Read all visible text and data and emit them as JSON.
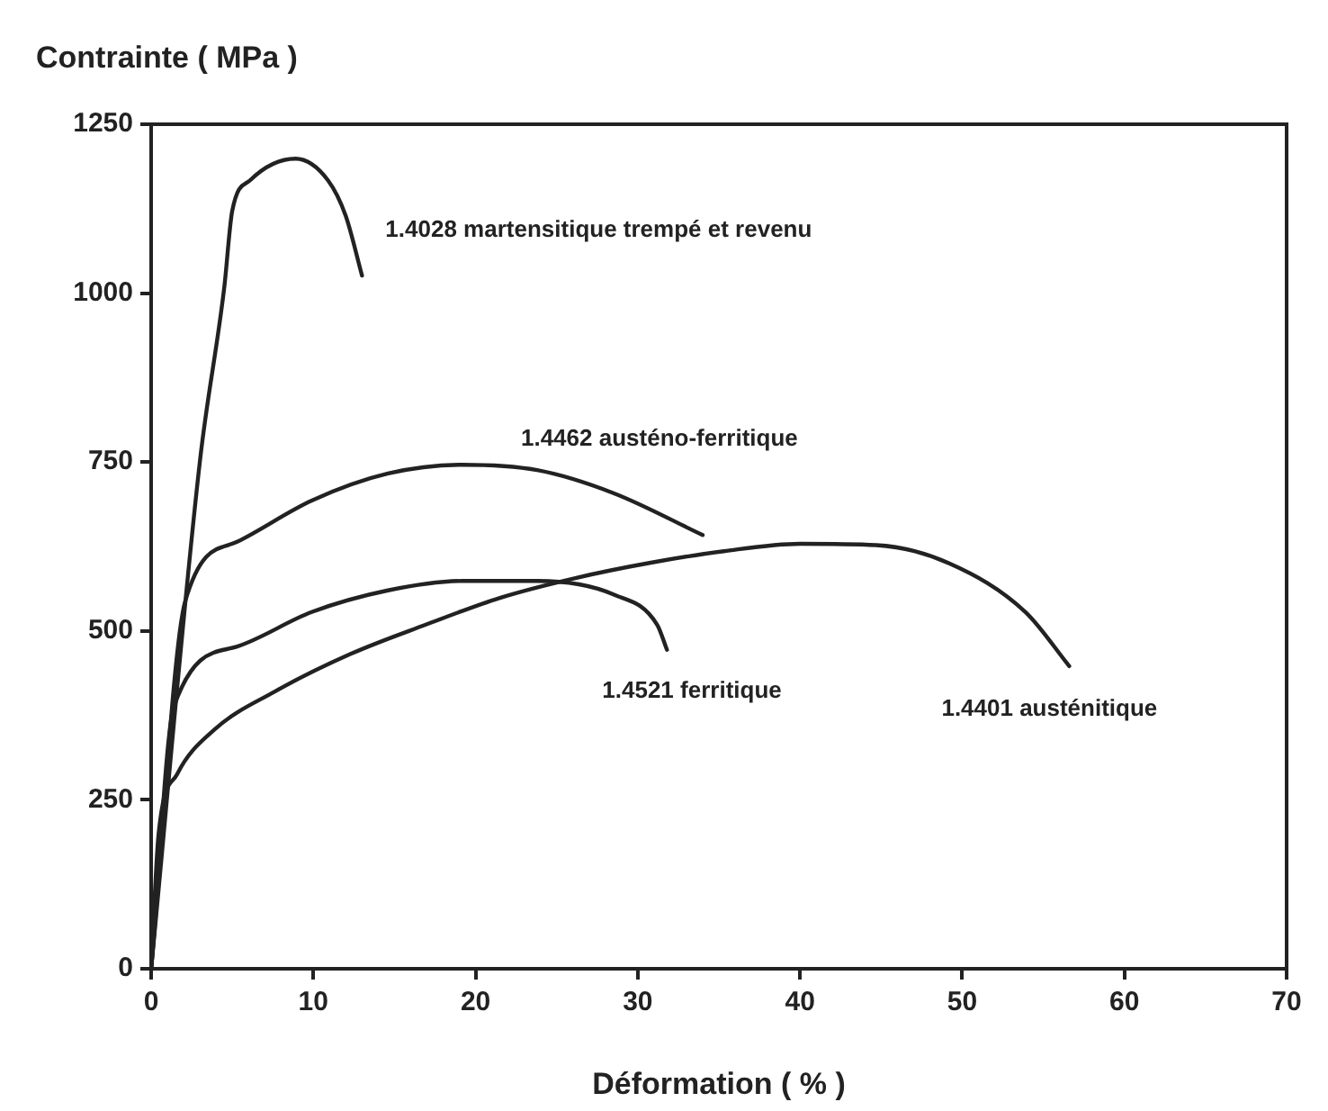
{
  "chart_data": {
    "type": "line",
    "ylabel": "Contrainte ( MPa )",
    "xlabel": "Déformation ( % )",
    "xlim": [
      0,
      70
    ],
    "xticks": [
      0,
      10,
      20,
      30,
      40,
      50,
      60,
      70
    ],
    "ylim": [
      0,
      1250
    ],
    "yticks": [
      0,
      250,
      500,
      750,
      1000,
      1250
    ],
    "marker": "none",
    "line_style": "solid",
    "legend": false,
    "series": [
      {
        "name": "1.4028 martensitique trempé et revenu",
        "color": "#222222",
        "x": [
          0,
          3.0,
          4.5,
          5.0,
          6.1,
          8.9,
          10.9,
          12.0,
          13.0
        ],
        "values": [
          0,
          750,
          1007,
          1122,
          1167,
          1199,
          1167,
          1114,
          1026
        ]
      },
      {
        "name": "1.4462 austéno-ferritique",
        "color": "#222222",
        "x": [
          0,
          2.1,
          5.3,
          9.9,
          14.6,
          19.2,
          23.8,
          28.5,
          34.0
        ],
        "values": [
          0,
          544,
          632,
          693,
          733,
          746,
          738,
          704,
          642
        ]
      },
      {
        "name": "1.4521 ferritique",
        "color": "#222222",
        "x": [
          0,
          1.4,
          5.3,
          9.9,
          14.6,
          19.2,
          23.8,
          28.5,
          31.2,
          31.8
        ],
        "values": [
          0,
          388,
          477,
          528,
          560,
          574,
          574,
          554,
          509,
          472
        ]
      },
      {
        "name": "1.4401 austénitique",
        "color": "#222222",
        "x": [
          0,
          0.46,
          1.6,
          3.9,
          7.6,
          12.3,
          16.9,
          21.5,
          26.1,
          30.8,
          35.3,
          40.0,
          44.7,
          49.2,
          53.9,
          56.6
        ],
        "values": [
          0,
          200,
          288,
          354,
          410,
          466,
          509,
          549,
          578,
          601,
          618,
          629,
          627,
          600,
          528,
          448
        ]
      }
    ]
  }
}
